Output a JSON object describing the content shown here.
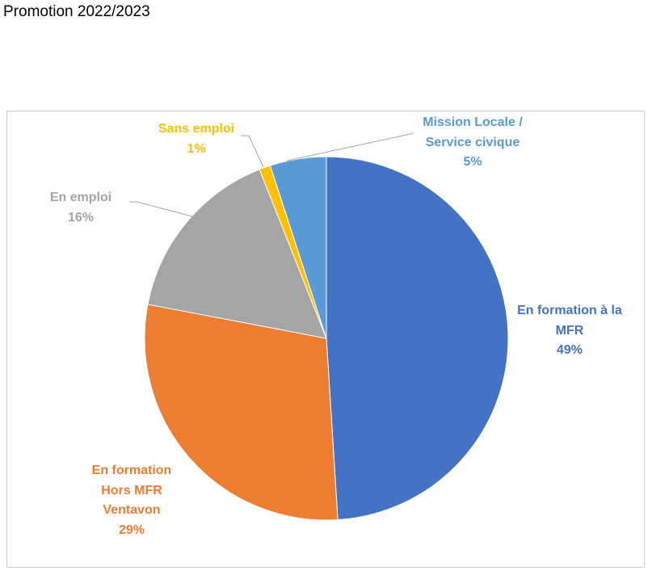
{
  "chart_data": {
    "type": "pie",
    "title": "Promotion 2022/2023",
    "categories": [
      "En formation à la MFR",
      "En formation Hors MFR Ventavon",
      "En emploi",
      "Sans emploi",
      "Mission Locale / Service civique"
    ],
    "values": [
      49,
      29,
      16,
      1,
      5
    ],
    "value_labels": [
      "49%",
      "29%",
      "16%",
      "1%",
      "5%"
    ],
    "colors": [
      "#4472c4",
      "#ed7d31",
      "#a5a5a5",
      "#ffc000",
      "#5b9bd5"
    ]
  }
}
